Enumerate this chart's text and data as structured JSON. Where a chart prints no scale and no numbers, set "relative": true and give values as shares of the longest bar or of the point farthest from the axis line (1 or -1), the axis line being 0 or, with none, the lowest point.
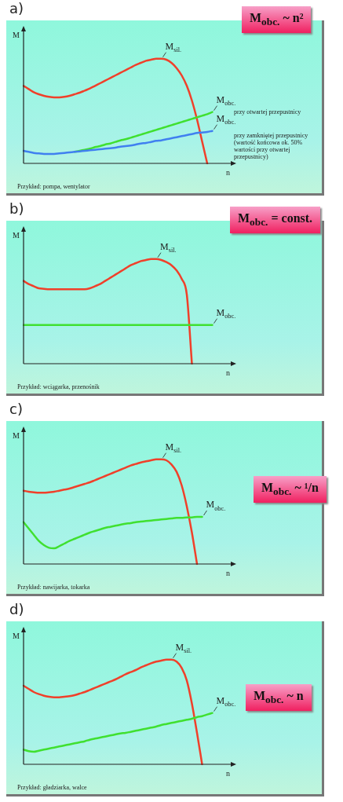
{
  "chart_data": [
    {
      "type": "line",
      "title": "a)",
      "xlabel": "n",
      "ylabel": "M",
      "relative": true,
      "tick_labels": false,
      "line_style": "solid",
      "categories": [
        null,
        null,
        null,
        null,
        null,
        null,
        null,
        null,
        null,
        null,
        null,
        null,
        null,
        null,
        null,
        null,
        null,
        null,
        null,
        null,
        null,
        null,
        null,
        null,
        null,
        null,
        null,
        null,
        null,
        null,
        null,
        null,
        null,
        null,
        null,
        null,
        null,
        null,
        null,
        null,
        null
      ],
      "annotations": [
        "M$_{obc.}$ ~ n²",
        "Przykład: pompa, wentylator",
        "przy otwartej przepustnicy",
        "przy zamkniętej przepustnicy (wartość końcowa ok. 50% wartości przy otwartej przepustnicy)"
      ],
      "series": [
        {
          "name": "M$_{sil.}$",
          "color": "#f0402a",
          "values": [
            0.74,
            0.71,
            0.68,
            0.66,
            0.645,
            0.635,
            0.63,
            0.63,
            0.635,
            0.645,
            0.66,
            0.675,
            0.695,
            0.715,
            0.74,
            0.765,
            0.79,
            0.815,
            0.84,
            0.865,
            0.89,
            0.915,
            0.94,
            0.96,
            0.98,
            0.99,
            1.0,
            1.0,
            0.99,
            0.96,
            0.91,
            0.84,
            0.74,
            0.6,
            0.42,
            0.21,
            0,
            null,
            null,
            null,
            null
          ]
        },
        {
          "name": "M$_{obc.}$",
          "color": "#40e030",
          "values": [
            null,
            null,
            null,
            null,
            null,
            null,
            null,
            null,
            null,
            null,
            0.11,
            0.12,
            0.13,
            0.14,
            0.155,
            0.165,
            0.18,
            0.19,
            0.205,
            0.22,
            0.23,
            0.245,
            0.26,
            0.275,
            0.29,
            0.305,
            0.32,
            0.335,
            0.35,
            0.365,
            0.38,
            0.395,
            0.41,
            0.425,
            0.44,
            0.455,
            0.47,
            0.49,
            null,
            null,
            null
          ]
        },
        {
          "name": "M$_{obc.}$",
          "color": "#4080f0",
          "values": [
            0.12,
            0.11,
            0.1,
            0.095,
            0.09,
            0.09,
            0.09,
            0.095,
            0.1,
            0.105,
            0.11,
            0.115,
            0.12,
            0.125,
            0.13,
            0.135,
            0.14,
            0.145,
            0.15,
            0.16,
            0.165,
            0.17,
            0.18,
            0.19,
            0.195,
            0.205,
            0.215,
            0.22,
            0.23,
            0.24,
            0.25,
            0.26,
            0.27,
            0.28,
            0.29,
            0.295,
            0.3,
            0.31,
            null,
            null,
            null
          ]
        }
      ]
    },
    {
      "type": "line",
      "title": "b)",
      "xlabel": "n",
      "ylabel": "M",
      "relative": true,
      "tick_labels": false,
      "line_style": "solid",
      "categories": [
        null,
        null,
        null,
        null,
        null,
        null,
        null,
        null,
        null,
        null,
        null,
        null,
        null,
        null,
        null,
        null,
        null,
        null,
        null,
        null,
        null,
        null,
        null,
        null,
        null,
        null,
        null,
        null,
        null,
        null,
        null,
        null,
        null,
        null,
        null,
        null,
        null,
        null,
        null,
        null,
        null
      ],
      "annotations": [
        "M$_{obc.}$ = const.",
        "Przykład: wciągarka, przenośnik"
      ],
      "series": [
        {
          "name": "M$_{sil.}$",
          "color": "#f0402a",
          "values": [
            0.79,
            0.76,
            0.74,
            0.72,
            0.715,
            0.71,
            0.71,
            0.71,
            0.71,
            0.71,
            0.71,
            0.71,
            0.71,
            0.72,
            0.74,
            0.76,
            0.79,
            0.82,
            0.85,
            0.88,
            0.91,
            0.94,
            0.96,
            0.98,
            0.99,
            1.0,
            1.0,
            0.99,
            0.97,
            0.94,
            0.89,
            0.81,
            0.66,
            0,
            null,
            null,
            null,
            null,
            null,
            null,
            null
          ]
        },
        {
          "name": "M$_{obc.}$",
          "color": "#40e030",
          "values": [
            0.37,
            0.37,
            0.37,
            0.37,
            0.37,
            0.37,
            0.37,
            0.37,
            0.37,
            0.37,
            0.37,
            0.37,
            0.37,
            0.37,
            0.37,
            0.37,
            0.37,
            0.37,
            0.37,
            0.37,
            0.37,
            0.37,
            0.37,
            0.37,
            0.37,
            0.37,
            0.37,
            0.37,
            0.37,
            0.37,
            0.37,
            0.37,
            0.37,
            0.37,
            0.37,
            0.37,
            0.37,
            0.37,
            null,
            null,
            null
          ]
        }
      ]
    },
    {
      "type": "line",
      "title": "c)",
      "xlabel": "n",
      "ylabel": "M",
      "relative": true,
      "tick_labels": false,
      "line_style": "solid",
      "categories": [
        null,
        null,
        null,
        null,
        null,
        null,
        null,
        null,
        null,
        null,
        null,
        null,
        null,
        null,
        null,
        null,
        null,
        null,
        null,
        null,
        null,
        null,
        null,
        null,
        null,
        null,
        null,
        null,
        null,
        null,
        null,
        null,
        null,
        null,
        null,
        null,
        null,
        null,
        null,
        null,
        null
      ],
      "annotations": [
        "M$_{obc.}$ ~ ¹/n",
        "Przykład: nawijarka, tokarka"
      ],
      "series": [
        {
          "name": "M$_{sil.}$",
          "color": "#f0402a",
          "values": [
            0.7,
            0.69,
            0.685,
            0.68,
            0.68,
            0.685,
            0.69,
            0.7,
            0.71,
            0.72,
            0.735,
            0.75,
            0.765,
            0.78,
            0.8,
            0.82,
            0.84,
            0.86,
            0.88,
            0.9,
            0.92,
            0.94,
            0.955,
            0.97,
            0.98,
            0.99,
            1.0,
            1.0,
            0.99,
            0.95,
            0.88,
            0.75,
            0.55,
            0.3,
            0,
            null,
            null,
            null,
            null,
            null,
            null
          ]
        },
        {
          "name": "M$_{obc.}$",
          "color": "#40e030",
          "values": [
            0.4,
            0.34,
            0.28,
            0.22,
            0.18,
            0.155,
            0.15,
            0.17,
            0.195,
            0.22,
            0.24,
            0.26,
            0.28,
            0.3,
            0.315,
            0.33,
            0.345,
            0.355,
            0.365,
            0.375,
            0.385,
            0.39,
            0.4,
            0.405,
            0.41,
            0.415,
            0.42,
            0.425,
            0.43,
            0.435,
            0.44,
            0.44,
            0.445,
            0.445,
            0.45,
            0.45,
            null,
            null,
            null,
            null,
            null
          ]
        }
      ]
    },
    {
      "type": "line",
      "title": "d)",
      "xlabel": "n",
      "ylabel": "M",
      "relative": true,
      "tick_labels": false,
      "line_style": "solid",
      "categories": [
        null,
        null,
        null,
        null,
        null,
        null,
        null,
        null,
        null,
        null,
        null,
        null,
        null,
        null,
        null,
        null,
        null,
        null,
        null,
        null,
        null,
        null,
        null,
        null,
        null,
        null,
        null,
        null,
        null,
        null,
        null,
        null,
        null,
        null,
        null,
        null,
        null,
        null,
        null,
        null,
        null
      ],
      "annotations": [
        "M$_{obc.}$ ~ n",
        "Przykład: gładziarka, walce"
      ],
      "series": [
        {
          "name": "M$_{sil.}$",
          "color": "#f0402a",
          "values": [
            0.75,
            0.72,
            0.69,
            0.67,
            0.655,
            0.645,
            0.64,
            0.64,
            0.645,
            0.65,
            0.66,
            0.675,
            0.69,
            0.71,
            0.73,
            0.75,
            0.77,
            0.79,
            0.81,
            0.835,
            0.86,
            0.88,
            0.9,
            0.925,
            0.945,
            0.965,
            0.98,
            0.99,
            1.0,
            1.0,
            0.98,
            0.92,
            0.8,
            0.58,
            0.3,
            0,
            null,
            null,
            null,
            null,
            null
          ]
        },
        {
          "name": "M$_{obc.}$",
          "color": "#40e030",
          "values": [
            0.14,
            0.125,
            0.12,
            0.13,
            0.14,
            0.15,
            0.16,
            0.17,
            0.18,
            0.19,
            0.2,
            0.21,
            0.22,
            0.235,
            0.245,
            0.255,
            0.265,
            0.275,
            0.285,
            0.295,
            0.3,
            0.31,
            0.32,
            0.33,
            0.34,
            0.35,
            0.36,
            0.375,
            0.385,
            0.395,
            0.405,
            0.415,
            0.425,
            0.435,
            0.45,
            0.46,
            0.475,
            0.49,
            null,
            null,
            null
          ]
        }
      ]
    }
  ]
}
